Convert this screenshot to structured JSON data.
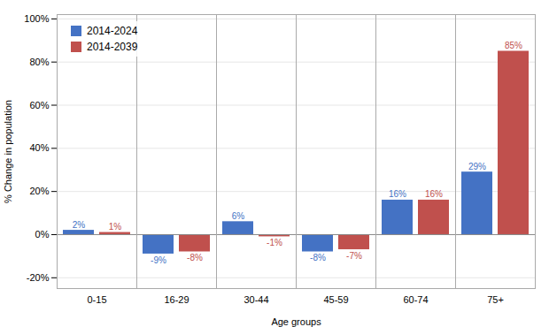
{
  "chart_data": {
    "type": "bar",
    "categories": [
      "0-15",
      "16-29",
      "30-44",
      "45-59",
      "60-74",
      "75+"
    ],
    "series": [
      {
        "name": "2014-2024",
        "color": "#4472C4",
        "values": [
          2,
          -9,
          6,
          -8,
          16,
          29
        ],
        "value_labels": [
          "2%",
          "-9%",
          "6%",
          "-8%",
          "16%",
          "29%"
        ]
      },
      {
        "name": "2014-2039",
        "color": "#C0504D",
        "values": [
          1,
          -8,
          -1,
          -7,
          16,
          85
        ],
        "value_labels": [
          "1%",
          "-8%",
          "-1%",
          "-7%",
          "16%",
          "85%"
        ]
      }
    ],
    "xlabel": "Age groups",
    "ylabel": "% Change in population",
    "ylim": [
      -25,
      102
    ],
    "yticks": [
      {
        "value": -20,
        "label": "-20%"
      },
      {
        "value": 0,
        "label": "0%"
      },
      {
        "value": 20,
        "label": "20%"
      },
      {
        "value": 40,
        "label": "40%"
      },
      {
        "value": 60,
        "label": "60%"
      },
      {
        "value": 80,
        "label": "80%"
      },
      {
        "value": 100,
        "label": "100%"
      }
    ],
    "grid": true,
    "legend": "upper left",
    "data_labels": true
  }
}
